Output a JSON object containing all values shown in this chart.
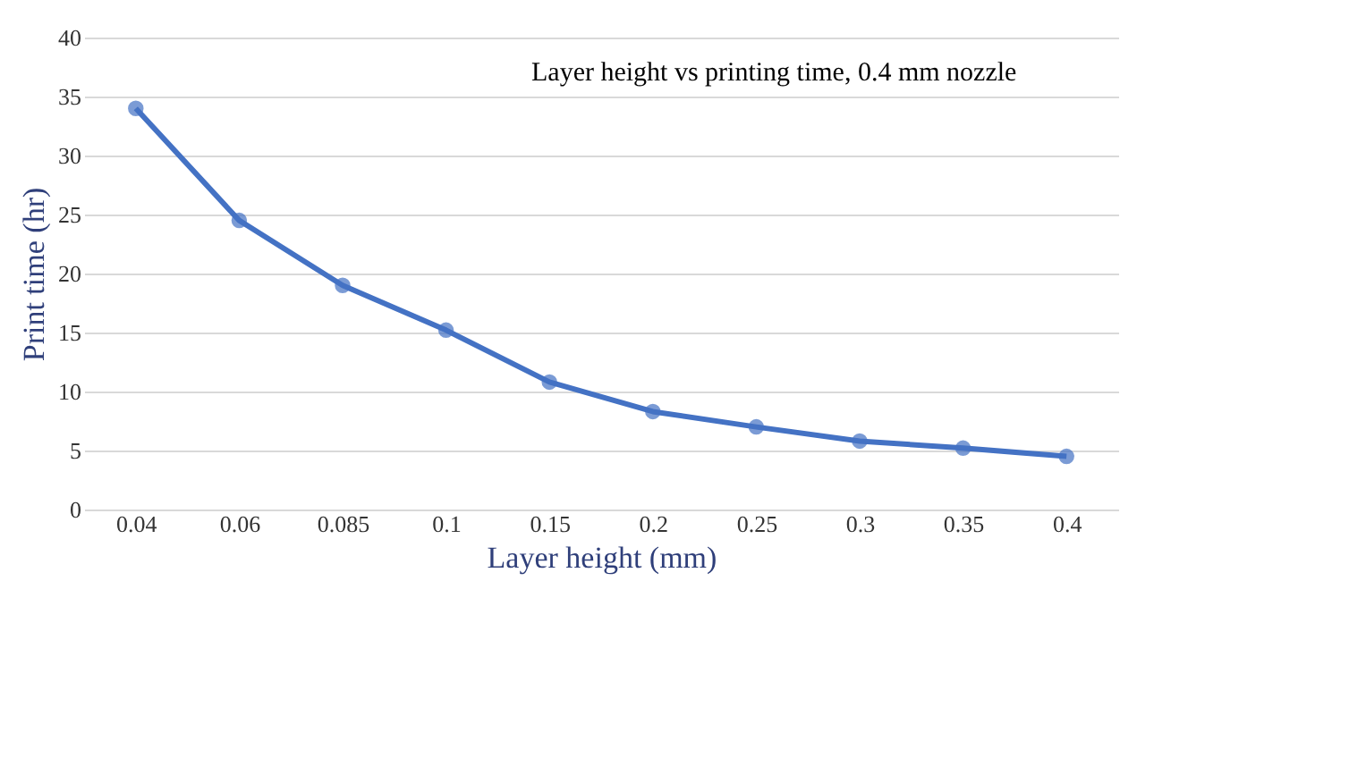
{
  "chart_data": {
    "type": "line",
    "title": "Layer height vs printing time, 0.4 mm nozzle",
    "xlabel": "Layer height (mm)",
    "ylabel": "Print time (hr)",
    "categories": [
      "0.04",
      "0.06",
      "0.085",
      "0.1",
      "0.15",
      "0.2",
      "0.25",
      "0.3",
      "0.35",
      "0.4"
    ],
    "series": [
      {
        "color": "#4472c4",
        "values": [
          34,
          24.5,
          19,
          15.2,
          10.8,
          8.3,
          7,
          5.8,
          5.2,
          4.5
        ]
      }
    ],
    "marker": "circle",
    "ylim": [
      0,
      40
    ],
    "yticks": [
      0,
      5,
      10,
      15,
      20,
      25,
      30,
      35,
      40
    ],
    "grid": "y"
  }
}
